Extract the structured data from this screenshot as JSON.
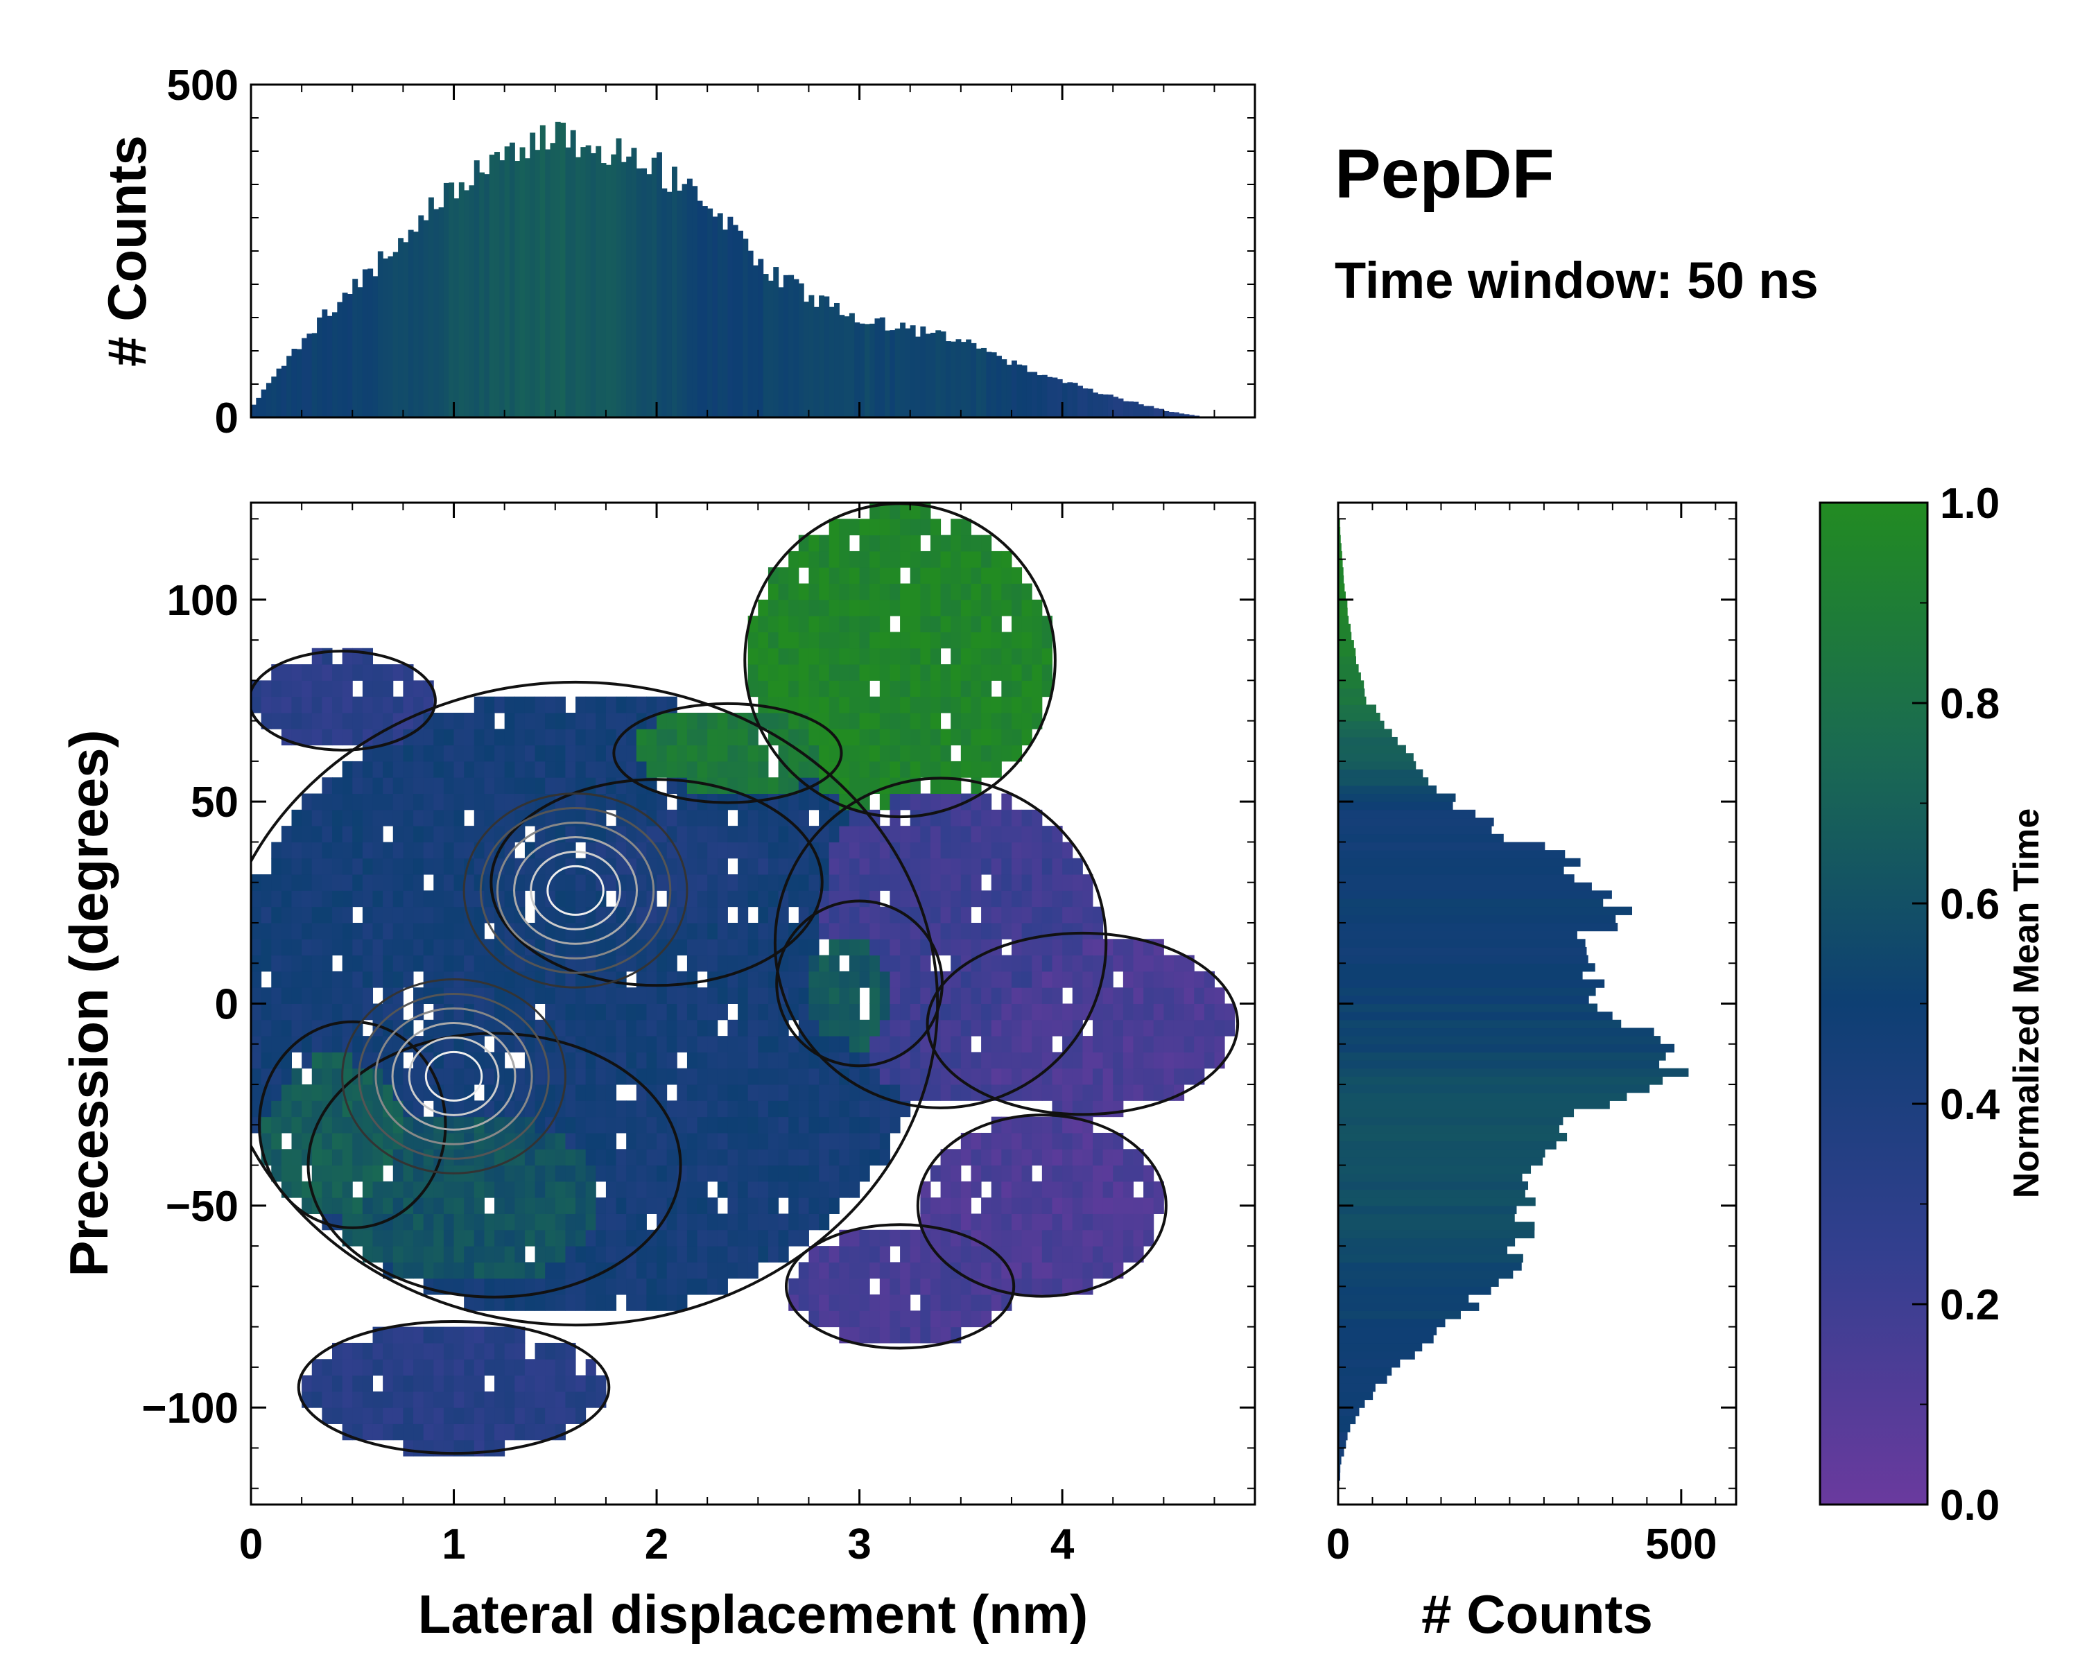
{
  "title": "PepDF",
  "subtitle": "Time window: 50 ns",
  "colors": {
    "low": "#6a3a9e",
    "mid": "#0e3f73",
    "high": "#228b22",
    "contour_dark": "#111111",
    "contour_light": "#e8e8e8"
  },
  "chart_data": [
    {
      "id": "top-histogram",
      "type": "bar",
      "title": "",
      "xlabel": "",
      "ylabel": "# Counts",
      "xlim": [
        0,
        4.95
      ],
      "ylim": [
        0,
        500
      ],
      "yticks": [
        0,
        500
      ],
      "bin_width": 0.025,
      "x": [
        0.0,
        0.25,
        0.5,
        0.75,
        1.0,
        1.25,
        1.5,
        1.75,
        2.0,
        2.25,
        2.5,
        2.75,
        3.0,
        3.25,
        3.5,
        3.75,
        4.0,
        4.25,
        4.5,
        4.7
      ],
      "values": [
        20,
        120,
        200,
        270,
        350,
        390,
        420,
        400,
        375,
        320,
        230,
        180,
        150,
        130,
        120,
        80,
        55,
        30,
        10,
        0
      ],
      "color_values": [
        0.5,
        0.5,
        0.52,
        0.55,
        0.62,
        0.66,
        0.68,
        0.64,
        0.58,
        0.5,
        0.52,
        0.55,
        0.55,
        0.52,
        0.55,
        0.5,
        0.45,
        0.4,
        0.38,
        0.35
      ]
    },
    {
      "id": "right-histogram",
      "type": "bar",
      "orientation": "horizontal",
      "xlabel": "# Counts",
      "ylabel": "",
      "xlim": [
        0,
        580
      ],
      "ylim": [
        -124,
        124
      ],
      "xticks": [
        0,
        500
      ],
      "bin_width": 2,
      "y": [
        -115,
        -105,
        -95,
        -85,
        -75,
        -65,
        -55,
        -45,
        -35,
        -25,
        -15,
        -5,
        5,
        15,
        25,
        35,
        45,
        55,
        65,
        75,
        85,
        95,
        105,
        115
      ],
      "values": [
        3,
        20,
        60,
        130,
        200,
        260,
        270,
        270,
        300,
        390,
        520,
        410,
        360,
        370,
        420,
        320,
        200,
        130,
        80,
        40,
        25,
        15,
        8,
        3
      ],
      "color_values": [
        0.45,
        0.48,
        0.48,
        0.5,
        0.52,
        0.55,
        0.58,
        0.6,
        0.6,
        0.62,
        0.55,
        0.52,
        0.5,
        0.48,
        0.5,
        0.48,
        0.45,
        0.62,
        0.72,
        0.85,
        0.92,
        0.95,
        0.95,
        0.95
      ]
    },
    {
      "id": "main-heatmap",
      "type": "heatmap",
      "xlabel": "Lateral displacement (nm)",
      "ylabel": "Precession (degrees)",
      "xlim": [
        0,
        4.95
      ],
      "ylim": [
        -124,
        124
      ],
      "xticks": [
        0,
        1,
        2,
        3,
        4
      ],
      "yticks": [
        -100,
        -50,
        0,
        50,
        100
      ],
      "ytick_labels": [
        "−100",
        "−50",
        "0",
        "50",
        "100"
      ],
      "cell": [
        0.05,
        4
      ],
      "regions": [
        {
          "cx": 1.6,
          "cy": 0,
          "rx": 1.75,
          "ry": 78,
          "value": 0.45
        },
        {
          "cx": 1.2,
          "cy": -40,
          "rx": 0.9,
          "ry": 32,
          "value": 0.62
        },
        {
          "cx": 0.5,
          "cy": -30,
          "rx": 0.45,
          "ry": 25,
          "value": 0.68
        },
        {
          "cx": 2.0,
          "cy": 30,
          "rx": 0.8,
          "ry": 25,
          "value": 0.4
        },
        {
          "cx": 3.2,
          "cy": 85,
          "rx": 0.75,
          "ry": 38,
          "value": 0.96
        },
        {
          "cx": 2.35,
          "cy": 62,
          "rx": 0.55,
          "ry": 12,
          "value": 0.86
        },
        {
          "cx": 3.4,
          "cy": 15,
          "rx": 0.8,
          "ry": 40,
          "value": 0.2
        },
        {
          "cx": 3.0,
          "cy": 5,
          "rx": 0.4,
          "ry": 20,
          "value": 0.65
        },
        {
          "cx": 4.1,
          "cy": -5,
          "rx": 0.75,
          "ry": 22,
          "value": 0.14
        },
        {
          "cx": 3.9,
          "cy": -50,
          "rx": 0.6,
          "ry": 22,
          "value": 0.13
        },
        {
          "cx": 3.2,
          "cy": -70,
          "rx": 0.55,
          "ry": 15,
          "value": 0.16
        },
        {
          "cx": 0.45,
          "cy": 75,
          "rx": 0.45,
          "ry": 12,
          "value": 0.3
        },
        {
          "cx": 1.0,
          "cy": -95,
          "rx": 0.75,
          "ry": 16,
          "value": 0.33
        }
      ],
      "contour_centers": [
        {
          "cx": 1.0,
          "cy": -18
        },
        {
          "cx": 1.6,
          "cy": 28
        }
      ]
    },
    {
      "id": "colorbar",
      "type": "colorbar",
      "label": "Normalized Mean Time",
      "range": [
        0,
        1
      ],
      "ticks": [
        0.0,
        0.2,
        0.4,
        0.6,
        0.8,
        1.0
      ],
      "tick_labels": [
        "0.0",
        "0.2",
        "0.4",
        "0.6",
        "0.8",
        "1.0"
      ],
      "stops": [
        {
          "v": 0.0,
          "color": "#6a3a9e"
        },
        {
          "v": 0.25,
          "color": "#333f8f"
        },
        {
          "v": 0.5,
          "color": "#0e3f73"
        },
        {
          "v": 0.75,
          "color": "#1a6a52"
        },
        {
          "v": 1.0,
          "color": "#228b22"
        }
      ]
    }
  ]
}
